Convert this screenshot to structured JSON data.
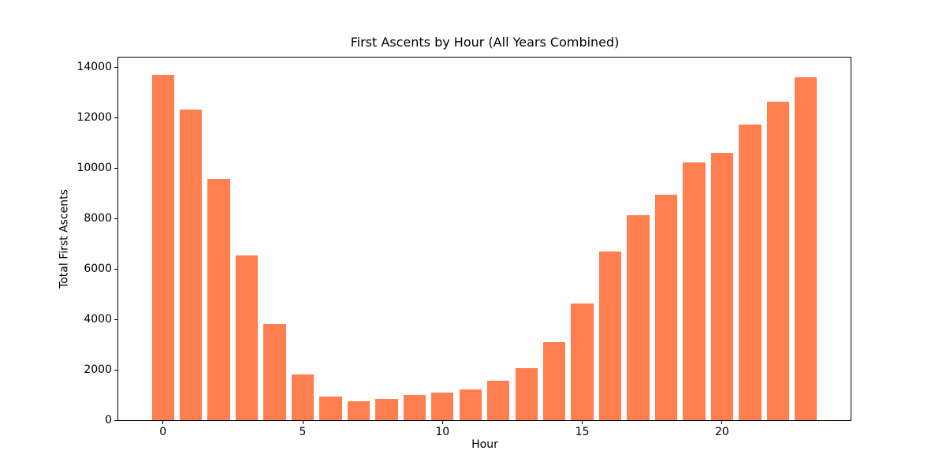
{
  "page": {
    "background": "#ffffff"
  },
  "chart_data": {
    "type": "bar",
    "title": "First Ascents by Hour (All Years Combined)",
    "xlabel": "Hour",
    "ylabel": "Total First Ascents",
    "categories": [
      0,
      1,
      2,
      3,
      4,
      5,
      6,
      7,
      8,
      9,
      10,
      11,
      12,
      13,
      14,
      15,
      16,
      17,
      18,
      19,
      20,
      21,
      22,
      23
    ],
    "values": [
      13690,
      12320,
      9560,
      6540,
      3800,
      1820,
      940,
      750,
      860,
      990,
      1090,
      1230,
      1560,
      2060,
      3110,
      4620,
      6700,
      8130,
      8940,
      10220,
      10610,
      11710,
      12630,
      13590
    ],
    "bar_color": "#FF7F50",
    "bar_width_data_units": 0.8,
    "xlim": [
      -1.6,
      24.6
    ],
    "ylim": [
      0,
      14380
    ],
    "xticks": [
      0,
      5,
      10,
      15,
      20
    ],
    "yticks": [
      0,
      2000,
      4000,
      6000,
      8000,
      10000,
      12000,
      14000
    ],
    "grid": false,
    "legend": "none",
    "axis_color": "#000000",
    "text_color": "#000000"
  }
}
